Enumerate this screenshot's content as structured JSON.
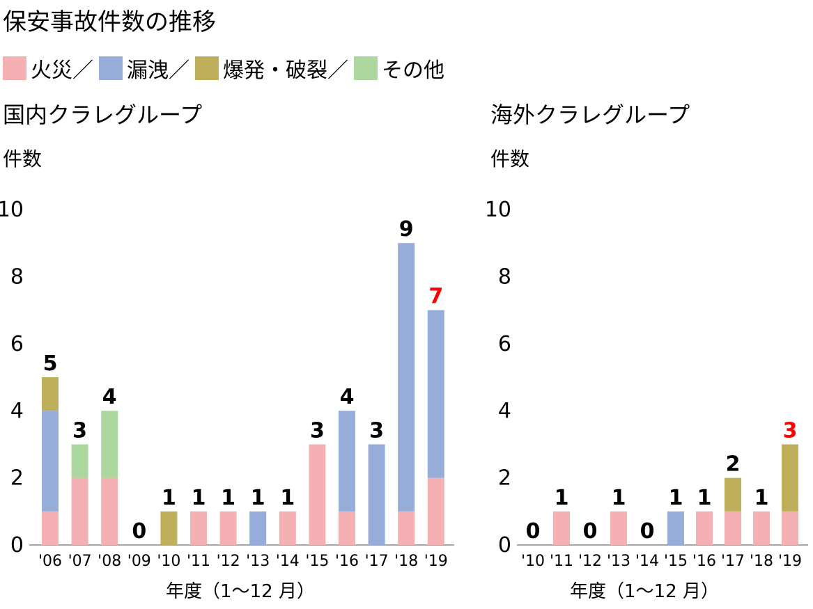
{
  "title": "保安事故件数の推移",
  "colors": {
    "fire": "#f4b0b3",
    "leak": "#96add9",
    "burst": "#bfaf5a",
    "other": "#acd89f",
    "text": "#000000",
    "highlight": "#ff0000",
    "axis": "#888888"
  },
  "legend": [
    {
      "key": "fire",
      "label": "火災／"
    },
    {
      "key": "leak",
      "label": "漏洩／"
    },
    {
      "key": "burst",
      "label": "爆発・破裂／"
    },
    {
      "key": "other",
      "label": "その他"
    }
  ],
  "chart_data": [
    {
      "type": "bar",
      "stacked": true,
      "title": "国内クラレグループ",
      "ylabel": "件数",
      "xlabel": "年度（1～12 月）",
      "ylim": [
        0,
        10
      ],
      "yticks": [
        0,
        2,
        4,
        6,
        8,
        10
      ],
      "categories": [
        "'06",
        "'07",
        "'08",
        "'09",
        "'10",
        "'11",
        "'12",
        "'13",
        "'14",
        "'15",
        "'16",
        "'17",
        "'18",
        "'19"
      ],
      "series": [
        {
          "key": "fire",
          "name": "火災",
          "values": [
            1,
            2,
            2,
            0,
            0,
            1,
            1,
            0,
            1,
            3,
            1,
            0,
            1,
            2
          ]
        },
        {
          "key": "leak",
          "name": "漏洩",
          "values": [
            3,
            0,
            0,
            0,
            0,
            0,
            0,
            1,
            0,
            0,
            3,
            3,
            8,
            5
          ]
        },
        {
          "key": "burst",
          "name": "爆発・破裂",
          "values": [
            1,
            0,
            0,
            0,
            1,
            0,
            0,
            0,
            0,
            0,
            0,
            0,
            0,
            0
          ]
        },
        {
          "key": "other",
          "name": "その他",
          "values": [
            0,
            1,
            2,
            0,
            0,
            0,
            0,
            0,
            0,
            0,
            0,
            0,
            0,
            0
          ]
        }
      ],
      "totals": [
        "5",
        "3",
        "4",
        "0",
        "1",
        "1",
        "1",
        "1",
        "1",
        "3",
        "4",
        "3",
        "9",
        "7"
      ],
      "highlight_last": true
    },
    {
      "type": "bar",
      "stacked": true,
      "title": "海外クラレグループ",
      "ylabel": "件数",
      "xlabel": "年度（1～12 月）",
      "ylim": [
        0,
        10
      ],
      "yticks": [
        0,
        2,
        4,
        6,
        8,
        10
      ],
      "categories": [
        "'10",
        "'11",
        "'12",
        "'13",
        "'14",
        "'15",
        "'16",
        "'17",
        "'18",
        "'19"
      ],
      "series": [
        {
          "key": "fire",
          "name": "火災",
          "values": [
            0,
            1,
            0,
            1,
            0,
            0,
            1,
            1,
            1,
            1
          ]
        },
        {
          "key": "leak",
          "name": "漏洩",
          "values": [
            0,
            0,
            0,
            0,
            0,
            1,
            0,
            0,
            0,
            0
          ]
        },
        {
          "key": "burst",
          "name": "爆発・破裂",
          "values": [
            0,
            0,
            0,
            0,
            0,
            0,
            0,
            1,
            0,
            2
          ]
        },
        {
          "key": "other",
          "name": "その他",
          "values": [
            0,
            0,
            0,
            0,
            0,
            0,
            0,
            0,
            0,
            0
          ]
        }
      ],
      "totals": [
        "0",
        "1",
        "0",
        "1",
        "0",
        "1",
        "1",
        "2",
        "1",
        "3"
      ],
      "highlight_last": true
    }
  ]
}
